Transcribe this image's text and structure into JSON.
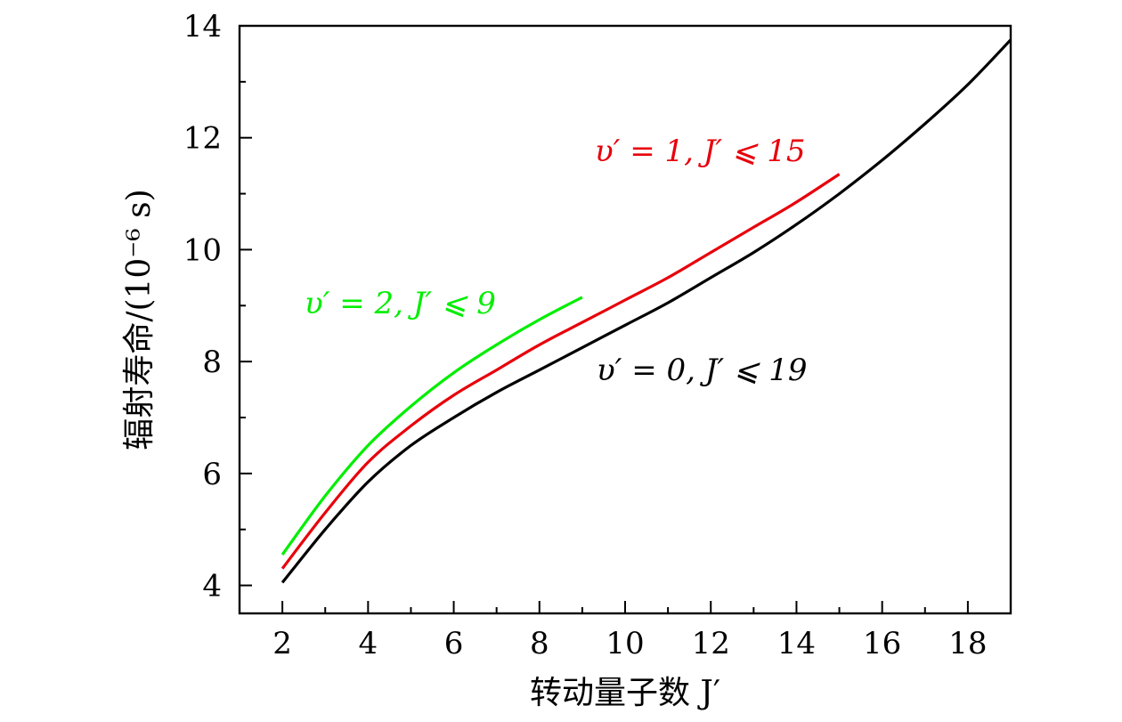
{
  "chart_data": {
    "type": "line",
    "xlabel": "转动量子数 J′",
    "ylabel": "辐射寿命/(10⁻⁶ s)",
    "xlim": [
      1,
      19
    ],
    "ylim": [
      3.5,
      14
    ],
    "xticks": [
      2,
      4,
      6,
      8,
      10,
      12,
      14,
      16,
      18
    ],
    "yticks": [
      4,
      6,
      8,
      10,
      12,
      14
    ],
    "grid": false,
    "series": [
      {
        "name": "υ′ = 0,  J′ ⩽ 19",
        "color": "#000000",
        "x": [
          2,
          3,
          4,
          5,
          6,
          7,
          8,
          9,
          10,
          11,
          12,
          13,
          14,
          15,
          16,
          17,
          18,
          19
        ],
        "y": [
          4.05,
          5.0,
          5.85,
          6.5,
          7.0,
          7.45,
          7.85,
          8.25,
          8.65,
          9.05,
          9.5,
          9.95,
          10.45,
          11.0,
          11.6,
          12.25,
          12.95,
          13.75
        ]
      },
      {
        "name": "υ′ = 1,  J′ ⩽ 15",
        "color": "#e8000b",
        "x": [
          2,
          3,
          4,
          5,
          6,
          7,
          8,
          9,
          10,
          11,
          12,
          13,
          14,
          15
        ],
        "y": [
          4.3,
          5.3,
          6.2,
          6.85,
          7.4,
          7.85,
          8.3,
          8.7,
          9.1,
          9.5,
          9.95,
          10.4,
          10.85,
          11.35
        ]
      },
      {
        "name": "υ′ = 2,  J′ ⩽ 9",
        "color": "#00ee00",
        "x": [
          2,
          3,
          4,
          5,
          6,
          7,
          8,
          9
        ],
        "y": [
          4.55,
          5.6,
          6.5,
          7.2,
          7.8,
          8.3,
          8.75,
          9.15
        ]
      }
    ]
  }
}
